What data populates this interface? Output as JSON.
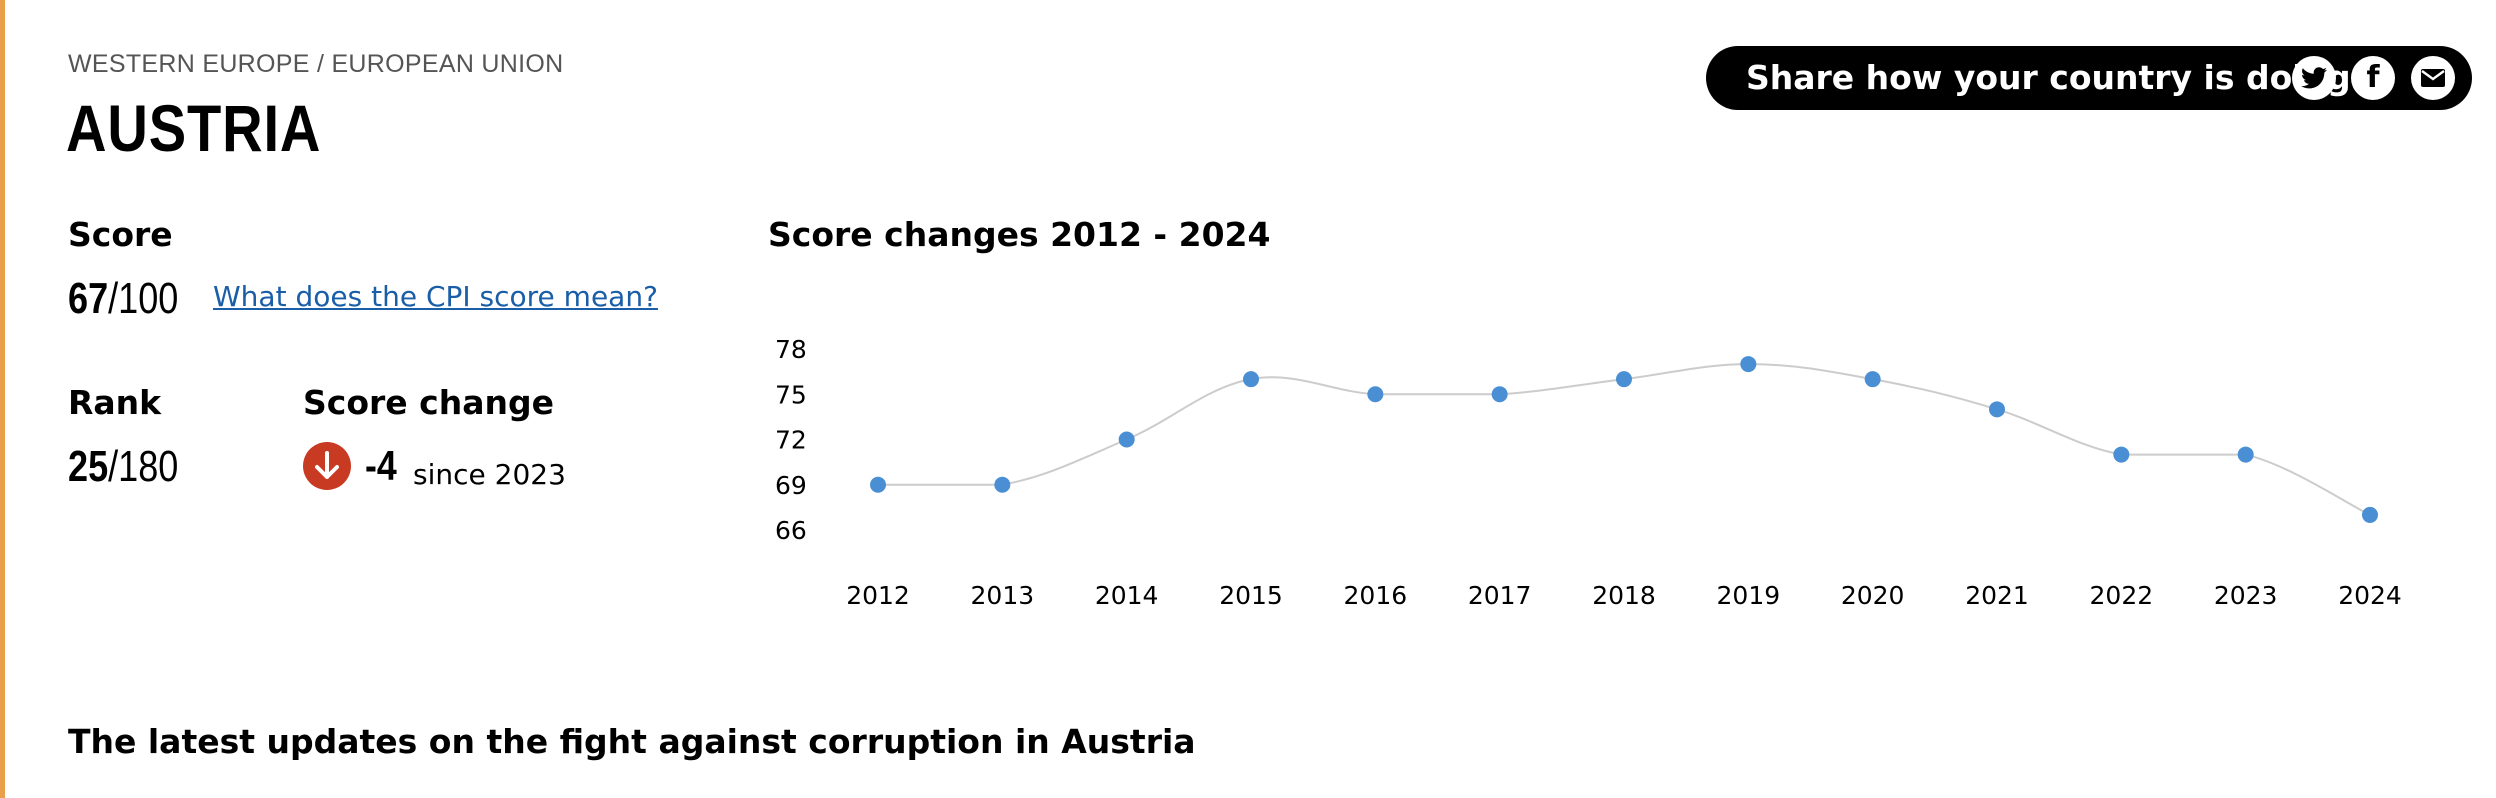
{
  "page": {
    "region": "WESTERN EUROPE / EUROPEAN UNION",
    "country": "AUSTRIA"
  },
  "score": {
    "label": "Score",
    "value": "67",
    "max": "/100",
    "link_text": "What does the CPI score mean?"
  },
  "rank": {
    "label": "Rank",
    "value": "25",
    "max": "/180"
  },
  "score_change": {
    "label": "Score change",
    "value": "-4",
    "since": "since 2023",
    "icon": "arrow-down-icon",
    "color": "#c83a22"
  },
  "share": {
    "text": "Share how your country is doing",
    "buttons": [
      "twitter-icon",
      "facebook-icon",
      "mail-icon"
    ]
  },
  "chart_data": {
    "type": "line",
    "title": "Score changes 2012 - 2024",
    "x": [
      "2012",
      "2013",
      "2014",
      "2015",
      "2016",
      "2017",
      "2018",
      "2019",
      "2020",
      "2021",
      "2022",
      "2023",
      "2024"
    ],
    "values": [
      69,
      69,
      72,
      76,
      75,
      75,
      76,
      77,
      76,
      74,
      71,
      71,
      67
    ],
    "yticks": [
      78,
      75,
      72,
      69,
      66
    ],
    "ylim": [
      66,
      78
    ],
    "point_color": "#4a8fd4",
    "line_color": "#cccccc",
    "grid": false,
    "smooth": true
  },
  "latest": {
    "heading": "The latest updates on the fight against corruption in Austria"
  }
}
